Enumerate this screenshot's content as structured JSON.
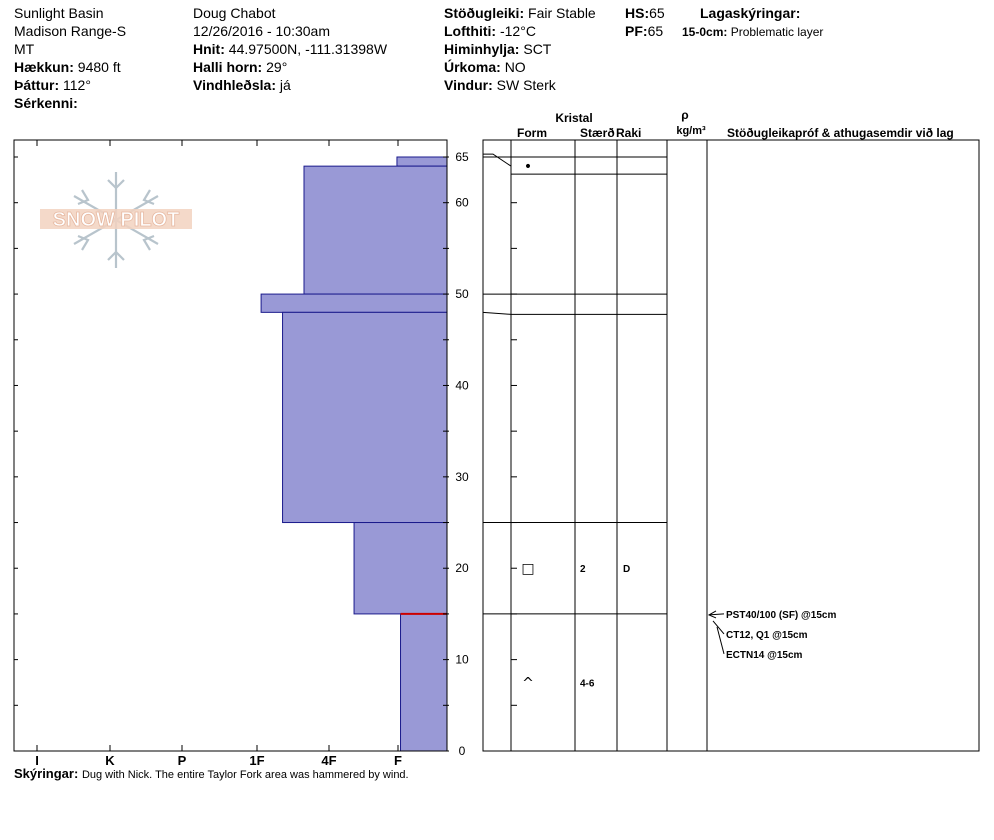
{
  "header": {
    "location_line1": "Sunlight Basin",
    "location_line2": "Madison Range-S",
    "location_line3": "MT",
    "elevation_label": "Hækkun:",
    "elevation_value": "9480 ft",
    "aspect_label": "Þáttur:",
    "aspect_value": "112°",
    "features_label": "Sérkenni:",
    "observer": "Doug Chabot",
    "datetime": "12/26/2016 - 10:30am",
    "coords_label": "Hnit:",
    "coords_value": "44.97500N, -111.31398W",
    "slope_label": "Halli horn:",
    "slope_value": "29°",
    "wind_loading_label": "Vindhleðsla:",
    "wind_loading_value": "já",
    "stability_label": "Stöðugleiki:",
    "stability_value": "Fair Stable",
    "air_temp_label": "Lofthiti:",
    "air_temp_value": "-12°C",
    "sky_label": "Himinhylja:",
    "sky_value": "SCT",
    "precip_label": "Úrkoma:",
    "precip_value": "NO",
    "wind_label": "Vindur:",
    "wind_value": "SW Sterk",
    "hs_label": "HS:",
    "hs_value": "65",
    "pf_label": "PF:",
    "pf_value": "65",
    "legend_title": "Lagaskýringar:",
    "legend_range": "15-0cm:",
    "legend_text": "Problematic layer"
  },
  "columns": {
    "crystal": "Kristal",
    "form": "Form",
    "size": "Stærð",
    "moisture": "Raki",
    "rho": "ρ",
    "density_unit": "kg/m³",
    "stability_tests": "Stöðugleikapróf & athugasemdir við lag"
  },
  "comments": {
    "label": "Skýringar:",
    "text": "Dug with Nick. The entire Taylor Fork area was hammered by wind."
  },
  "logo_text": "SNOW PILOT",
  "chart_data": {
    "type": "bar",
    "title": "",
    "xlabel": "",
    "ylabel": "",
    "ylim": [
      0,
      65
    ],
    "y_ticks": [
      "0",
      "10",
      "20",
      "30",
      "40",
      "50",
      "60",
      "65"
    ],
    "hardness_ticks": [
      "I",
      "K",
      "P",
      "1F",
      "4F",
      "F"
    ],
    "hardness_scale_note": "hardness axis reversed: left = hardest (I), right = softest (F)",
    "bar_color": "#9999d6",
    "problem_color": "#cc0000",
    "layers": [
      {
        "top": 65,
        "bottom": 64,
        "hardness": "F",
        "hardness_index": 0.7
      },
      {
        "top": 64,
        "bottom": 50,
        "hardness": "4F-",
        "hardness_index": 2.0
      },
      {
        "top": 50,
        "bottom": 48,
        "hardness": "1F+",
        "hardness_index": 2.6
      },
      {
        "top": 48,
        "bottom": 25,
        "hardness": "1F-",
        "hardness_index": 2.3
      },
      {
        "top": 25,
        "bottom": 15,
        "hardness": "4F+",
        "hardness_index": 1.3
      },
      {
        "top": 15,
        "bottom": 0,
        "hardness": "F+",
        "hardness_index": 0.65
      }
    ],
    "problem_layer_depth": 15,
    "layer_boundaries": [
      65,
      64,
      50,
      48,
      25,
      15
    ],
    "crystals": [
      {
        "depth": 64,
        "form": "•",
        "size": "",
        "moisture": ""
      },
      {
        "depth": 20,
        "form": "□",
        "size": "2",
        "moisture": "D"
      },
      {
        "depth": 7.5,
        "form": "^",
        "size": "4-6",
        "moisture": ""
      }
    ],
    "tests": [
      {
        "depth": 15,
        "text": "PST40/100 (SF) @15cm"
      },
      {
        "depth": 15,
        "text": "CT12, Q1 @15cm"
      },
      {
        "depth": 15,
        "text": "ECTN14 @15cm"
      }
    ]
  }
}
